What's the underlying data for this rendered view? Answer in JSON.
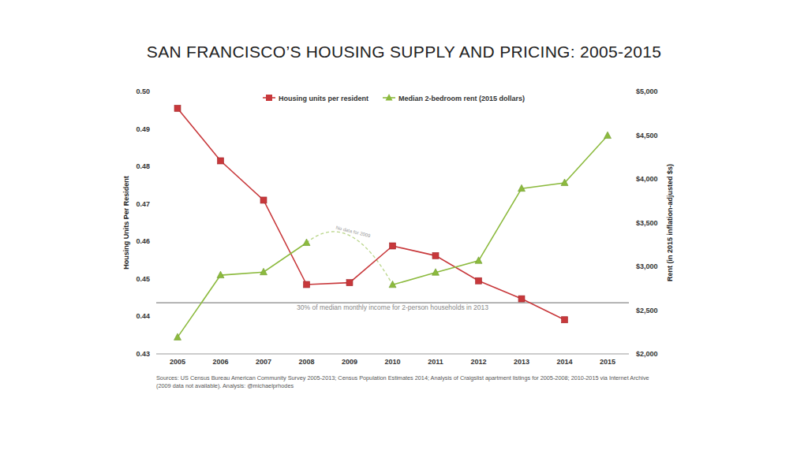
{
  "chart_data": {
    "type": "line",
    "title": "SAN FRANCISCO’S HOUSING SUPPLY AND PRICING: 2005-2015",
    "ylabel": "Housing Units Per Resident",
    "y2label": "Rent (in 2015 inflation-adjusted $s)",
    "categories": [
      "2005",
      "2006",
      "2007",
      "2008",
      "2009",
      "2010",
      "2011",
      "2012",
      "2013",
      "2014",
      "2015"
    ],
    "series": [
      {
        "name": "Housing units per resident",
        "color": "#c8383b",
        "marker": "square",
        "axis": "y",
        "values": [
          0.4955,
          0.4815,
          0.471,
          0.4485,
          0.449,
          0.4588,
          0.4562,
          0.4495,
          0.4447,
          0.4391,
          null
        ]
      },
      {
        "name": "Median 2-bedroom rent (2015 dollars)",
        "color": "#8cba3e",
        "marker": "triangle",
        "axis": "y2",
        "values": [
          2190,
          2900,
          2935,
          3270,
          null,
          2790,
          2930,
          3065,
          3890,
          3955,
          4495
        ]
      }
    ],
    "ylim": [
      0.43,
      0.5
    ],
    "yticks": [
      0.43,
      0.44,
      0.45,
      0.46,
      0.47,
      0.48,
      0.49,
      {
        "value": 0.5,
        "label": "0.50"
      }
    ],
    "y2lim": [
      2000,
      5000
    ],
    "y2ticks": [
      {
        "value": 2000,
        "label": "$2,000"
      },
      {
        "value": 2500,
        "label": "$2,500"
      },
      {
        "value": 3000,
        "label": "$3,000"
      },
      {
        "value": 3500,
        "label": "$3,500"
      },
      {
        "value": 4000,
        "label": "$4,000"
      },
      {
        "value": 4500,
        "label": "$4,500"
      },
      {
        "value": 5000,
        "label": "$5,000"
      }
    ],
    "annotations": [
      {
        "text": "30% of median monthly income for 2-person households in 2013",
        "value": 2585,
        "axis": "y2"
      },
      {
        "text": "No data for 2009"
      }
    ],
    "source": [
      "Sources: US Census Bureau American Community Survey 2005-2013; Census Population Estimates 2014; Analysis of Craigslist apartment listings for 2005-2008; 2010-2015 via Internet Archive",
      "(2009 data not available). Analysis: @michaelprhodes"
    ],
    "grid": false,
    "legend": "top"
  }
}
